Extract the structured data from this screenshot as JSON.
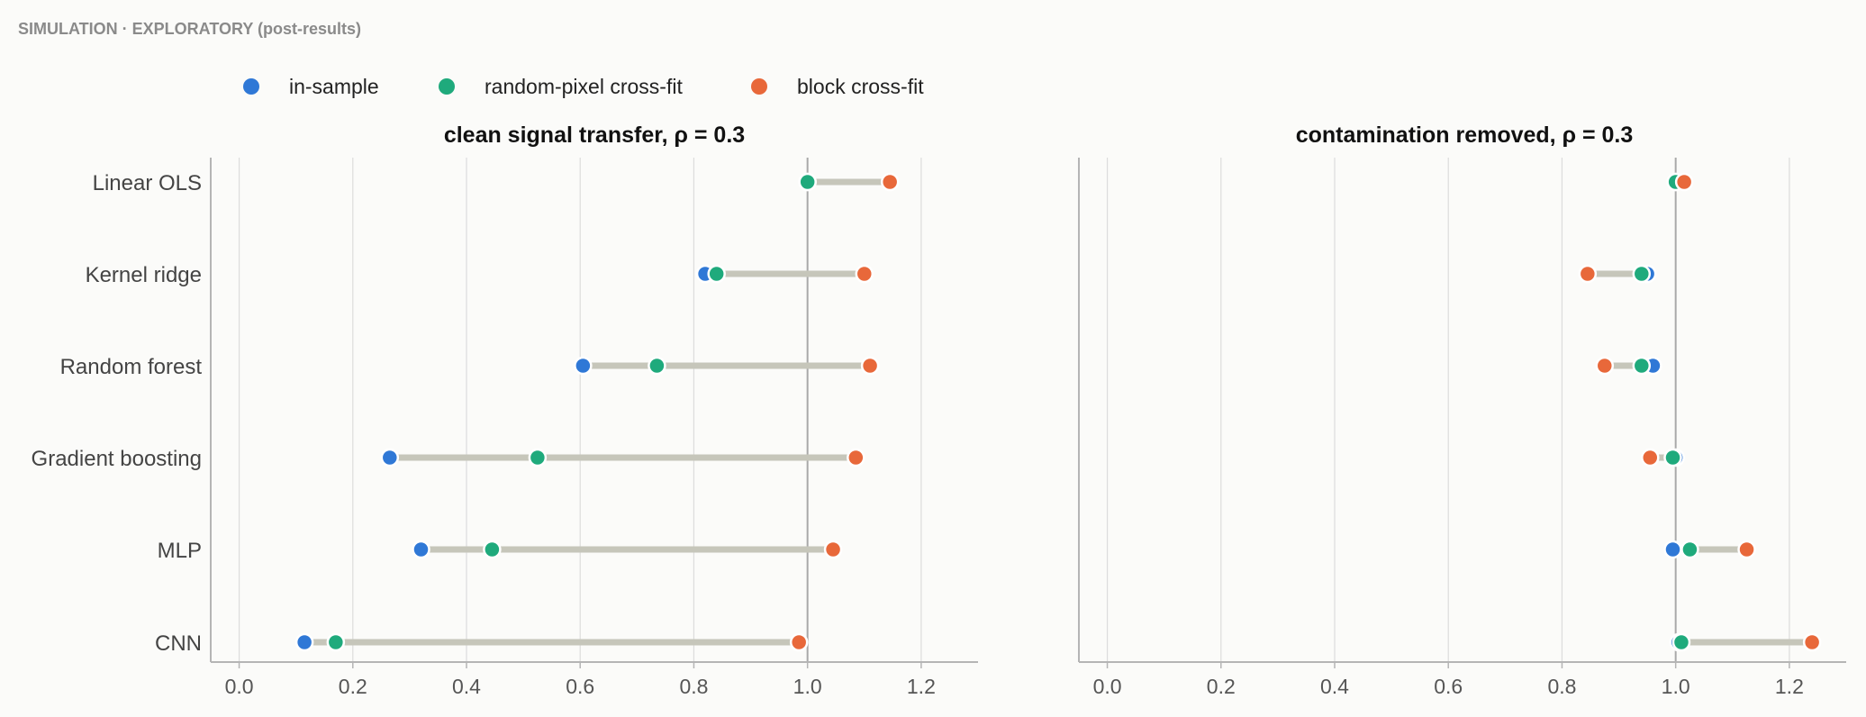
{
  "header": {
    "eyebrow": "SIMULATION · EXPLORATORY (post-results)"
  },
  "legend": [
    {
      "label": "in-sample",
      "color": "#2f78d6"
    },
    {
      "label": "random-pixel cross-fit",
      "color": "#1faa7c"
    },
    {
      "label": "block cross-fit",
      "color": "#e8683a"
    }
  ],
  "colors": {
    "connector": "#c6c6ba",
    "reference": "#a9a9a9",
    "grid": "#dcdcdc",
    "axis": "#b5b5b5"
  },
  "chart_data": [
    {
      "type": "scatter",
      "title": "clean signal transfer, ρ = 0.3",
      "xlabel": "",
      "ylabel": "",
      "categories": [
        "Linear OLS",
        "Kernel ridge",
        "Random forest",
        "Gradient boosting",
        "MLP",
        "CNN"
      ],
      "xlim": [
        -0.05,
        1.3
      ],
      "xticks": [
        0.0,
        0.2,
        0.4,
        0.6,
        0.8,
        1.0,
        1.2
      ],
      "xtick_labels": [
        "0.0",
        "0.2",
        "0.4",
        "0.6",
        "0.8",
        "1.0",
        "1.2"
      ],
      "reference_line": 1.0,
      "grid": true,
      "series": [
        {
          "name": "in-sample",
          "values": [
            1.0,
            0.82,
            0.605,
            0.265,
            0.32,
            0.115
          ]
        },
        {
          "name": "random-pixel cross-fit",
          "values": [
            1.0,
            0.84,
            0.735,
            0.525,
            0.445,
            0.17
          ]
        },
        {
          "name": "block cross-fit",
          "values": [
            1.145,
            1.1,
            1.11,
            1.085,
            1.045,
            0.985
          ]
        }
      ]
    },
    {
      "type": "scatter",
      "title": "contamination removed, ρ = 0.3",
      "xlabel": "",
      "ylabel": "",
      "categories": [
        "Linear OLS",
        "Kernel ridge",
        "Random forest",
        "Gradient boosting",
        "MLP",
        "CNN"
      ],
      "xlim": [
        -0.05,
        1.3
      ],
      "xticks": [
        0.0,
        0.2,
        0.4,
        0.6,
        0.8,
        1.0,
        1.2
      ],
      "xtick_labels": [
        "0.0",
        "0.2",
        "0.4",
        "0.6",
        "0.8",
        "1.0",
        "1.2"
      ],
      "reference_line": 1.0,
      "grid": true,
      "series": [
        {
          "name": "in-sample",
          "values": [
            1.0,
            0.95,
            0.96,
            1.0,
            0.995,
            1.005
          ]
        },
        {
          "name": "random-pixel cross-fit",
          "values": [
            1.0,
            0.94,
            0.94,
            0.995,
            1.025,
            1.01
          ]
        },
        {
          "name": "block cross-fit",
          "values": [
            1.015,
            0.845,
            0.875,
            0.955,
            1.125,
            1.24
          ]
        }
      ]
    }
  ]
}
